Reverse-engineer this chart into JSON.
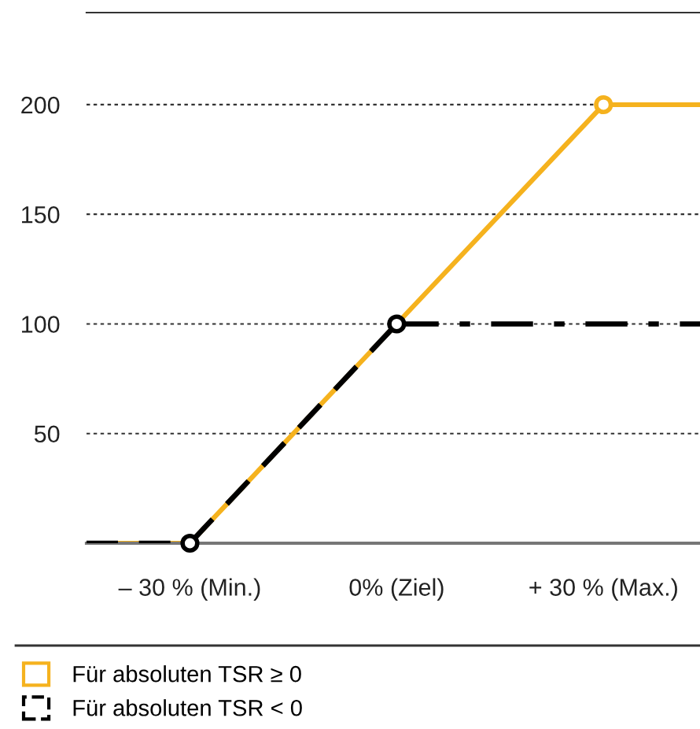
{
  "chart_data": {
    "type": "line",
    "xlim": [
      -45,
      44
    ],
    "ylim": [
      0,
      242
    ],
    "xticks": [
      {
        "value": -30,
        "label": "– 30 % (Min.)"
      },
      {
        "value": 0,
        "label": "0% (Ziel)"
      },
      {
        "value": 30,
        "label": "+ 30 % (Max.)"
      }
    ],
    "yticks": [
      50,
      100,
      150,
      200
    ],
    "grid": "y",
    "legend": "bottom",
    "marker": "none",
    "series": [
      {
        "name": "Für absoluten TSR ≥ 0",
        "color": "#f5b21e",
        "line_style": "solid",
        "x": [
          -45,
          -30,
          0,
          30,
          44
        ],
        "values": [
          0,
          0,
          100,
          200,
          200
        ]
      },
      {
        "name": "Für absoluten TSR < 0",
        "color": "#000000",
        "line_style": "dashed",
        "x": [
          -45,
          -30,
          0
        ],
        "values": [
          0,
          0,
          100
        ]
      },
      {
        "color": "#000000",
        "line_style": "dashdot",
        "x": [
          0,
          44
        ],
        "values": [
          100,
          100
        ]
      },
      {
        "type": "scatter",
        "marker": "circle",
        "colors": [
          "#000000",
          "#000000",
          "#f5b21e"
        ],
        "x": [
          -30,
          0,
          30
        ],
        "values": [
          0,
          100,
          200
        ]
      }
    ]
  }
}
